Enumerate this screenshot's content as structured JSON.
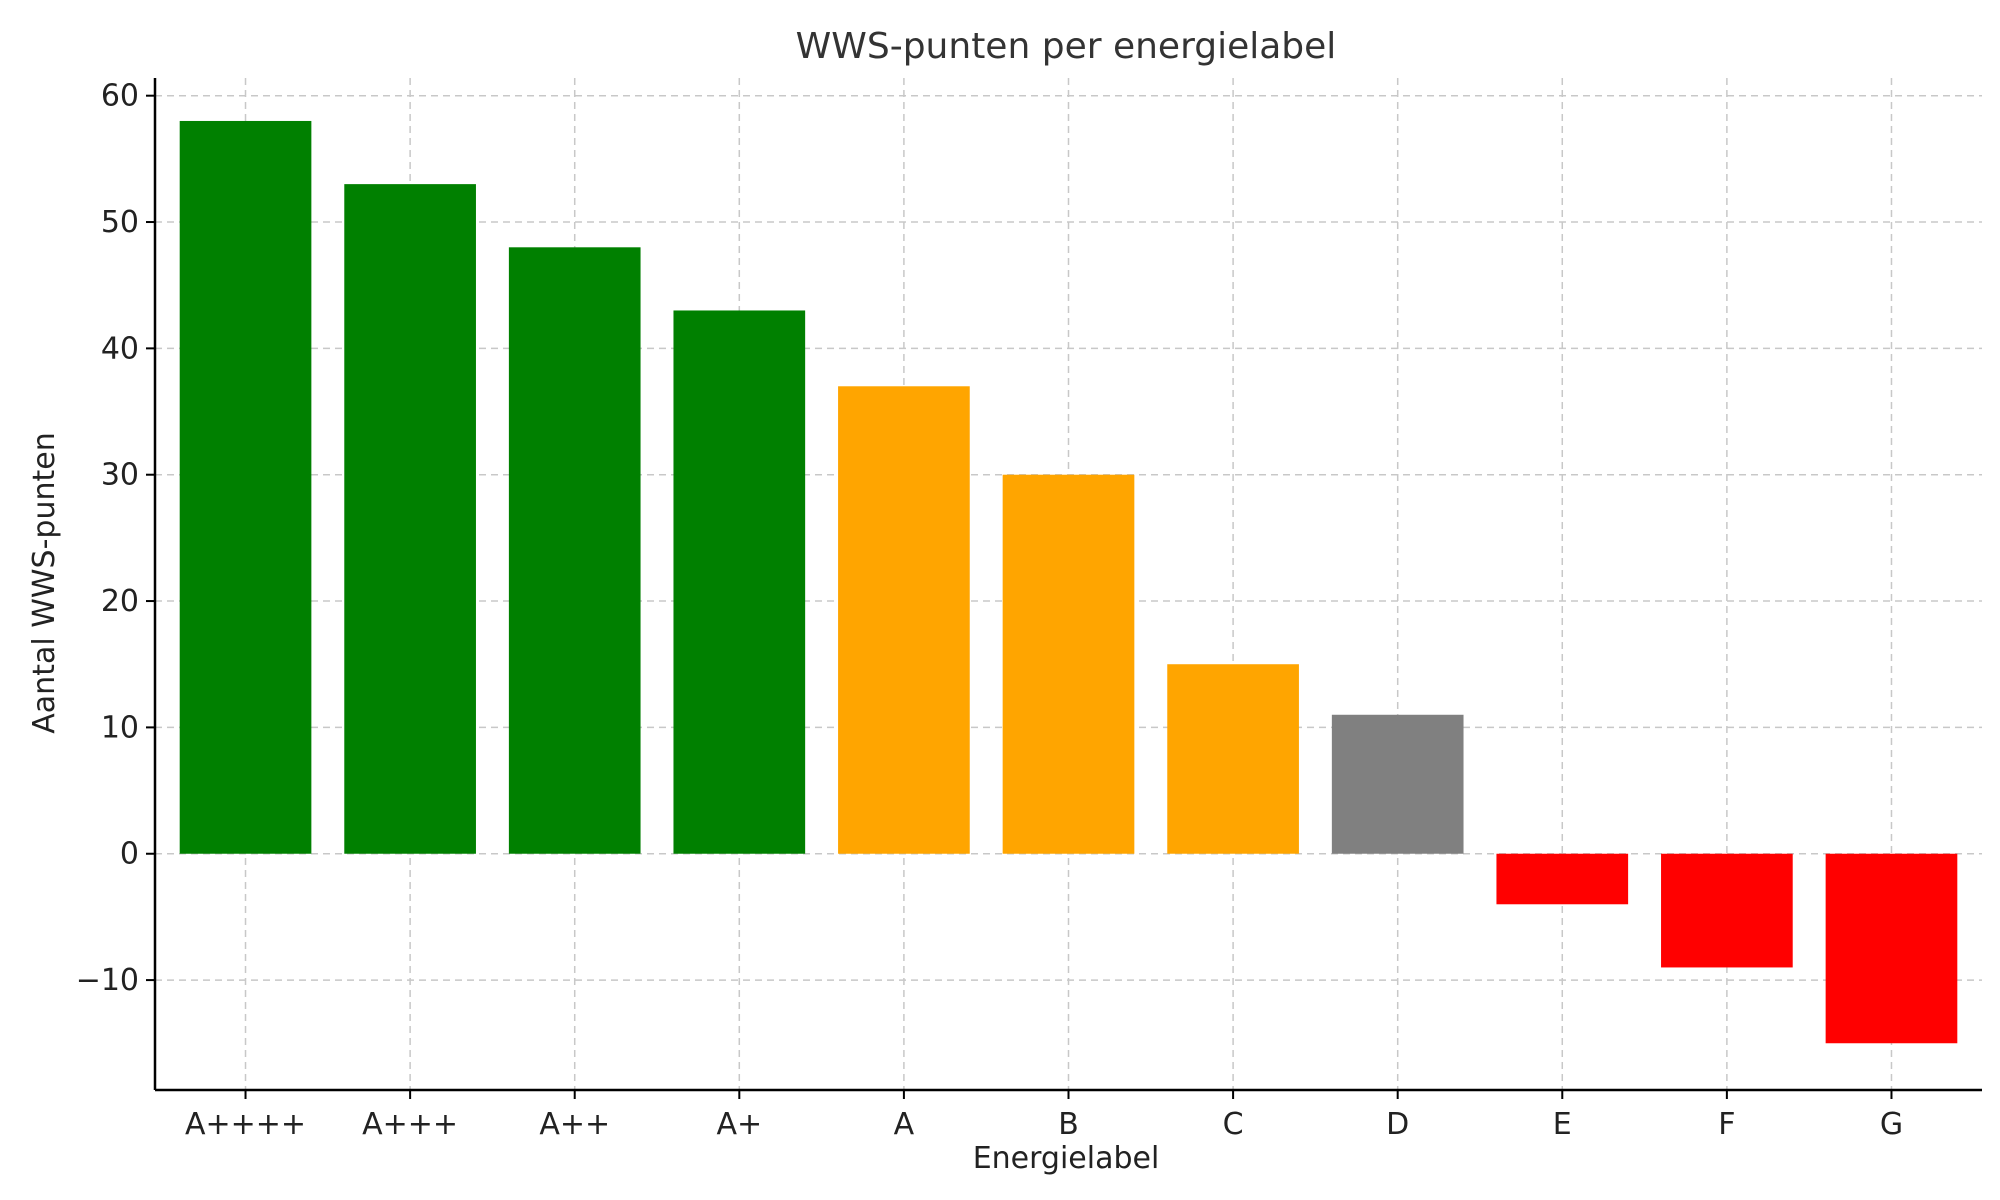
{
  "chart_data": {
    "type": "bar",
    "title": "WWS-punten per energielabel",
    "xlabel": "Energielabel",
    "ylabel": "Aantal WWS-punten",
    "categories": [
      "A++++",
      "A+++",
      "A++",
      "A+",
      "A",
      "B",
      "C",
      "D",
      "E",
      "F",
      "G"
    ],
    "values": [
      58,
      53,
      48,
      43,
      37,
      30,
      15,
      11,
      -4,
      -9,
      -15
    ],
    "colors": [
      "#008000",
      "#008000",
      "#008000",
      "#008000",
      "#FFA500",
      "#FFA500",
      "#FFA500",
      "#808080",
      "#FF0000",
      "#FF0000",
      "#FF0000"
    ],
    "ylim": [
      -18.7,
      61.4
    ],
    "yticks": [
      -10,
      0,
      10,
      20,
      30,
      40,
      50,
      60
    ],
    "ytick_labels": [
      "−10",
      "0",
      "10",
      "20",
      "30",
      "40",
      "50",
      "60"
    ],
    "grid": true,
    "legend": "none"
  }
}
